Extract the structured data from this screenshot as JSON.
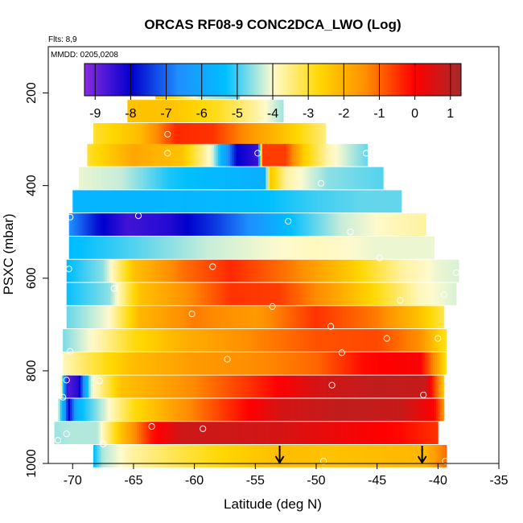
{
  "chart_data": {
    "type": "heatmap",
    "title": "ORCAS RF08-9 CONC2DCA_LWO (Log)",
    "subtitle_flights": "Flts: 8,9",
    "subtitle_dates": "MMDD: 0205,0208",
    "xlabel": "Latitude (deg N)",
    "ylabel": "PSXC (mbar)",
    "xlim": [
      -72,
      -35
    ],
    "ylim": [
      1000,
      100
    ],
    "y_reversed": true,
    "x_ticks": [
      -70,
      -65,
      -60,
      -55,
      -50,
      -45,
      -40,
      -35
    ],
    "x_tick_labels": [
      "-70",
      "-65",
      "-60",
      "-55",
      "-50",
      "-45",
      "-40",
      "-35"
    ],
    "y_ticks": [
      200,
      400,
      600,
      800,
      1000
    ],
    "y_tick_labels": [
      "200",
      "400",
      "600",
      "800",
      "1000"
    ],
    "grid": false,
    "colorbar": {
      "range": [
        -9.3,
        1.3
      ],
      "ticks": [
        -9,
        -8,
        -7,
        -6,
        -5,
        -4,
        -3,
        -2,
        -1,
        0,
        1
      ],
      "tick_labels": [
        "-9",
        "-8",
        "-7",
        "-6",
        "-5",
        "-4",
        "-3",
        "-2",
        "-1",
        "0",
        "1"
      ],
      "colors": [
        "#8a2be2",
        "#0000cd",
        "#1e90ff",
        "#00bfff",
        "#fffacd",
        "#ffd700",
        "#ff8c00",
        "#ff0000",
        "#a52a2a"
      ],
      "position": "top"
    },
    "bands": [
      {
        "p": 190,
        "lat_start": -63.2,
        "lat_end": -56.3,
        "knots": [
          [
            -63.2,
            -2.3
          ],
          [
            -61.5,
            -3.0
          ],
          [
            -59.5,
            -4.3
          ],
          [
            -57.0,
            -4.6
          ],
          [
            -56.3,
            -4.7
          ]
        ]
      },
      {
        "p": 240,
        "lat_start": -65.5,
        "lat_end": -52.7,
        "knots": [
          [
            -65.5,
            -2.3
          ],
          [
            -62.0,
            -2.3
          ],
          [
            -58.0,
            -2.9
          ],
          [
            -55.0,
            -3.7
          ],
          [
            -52.7,
            -4.5
          ]
        ]
      },
      {
        "p": 290,
        "lat_start": -68.3,
        "lat_end": -49.2,
        "knots": [
          [
            -68.3,
            -3.0
          ],
          [
            -64.5,
            -2.2
          ],
          [
            -61.5,
            -0.4
          ],
          [
            -58.5,
            -0.5
          ],
          [
            -55.5,
            -1.5
          ],
          [
            -52.0,
            -2.5
          ],
          [
            -49.2,
            -3.5
          ]
        ]
      },
      {
        "p": 335,
        "lat_start": -68.8,
        "lat_end": -45.8,
        "knots": [
          [
            -68.8,
            -3.0
          ],
          [
            -65.0,
            -1.8
          ],
          [
            -61.0,
            -2.3
          ],
          [
            -58.5,
            -4.2
          ],
          [
            -56.5,
            -8.0
          ],
          [
            -54.8,
            -8.5
          ],
          [
            -54.4,
            -0.6
          ],
          [
            -52.5,
            -0.6
          ],
          [
            -51.0,
            -2.5
          ],
          [
            -49.0,
            -3.8
          ],
          [
            -45.8,
            -4.8
          ]
        ]
      },
      {
        "p": 385,
        "lat_start": -69.5,
        "lat_end": -44.5,
        "knots": [
          [
            -69.5,
            -4.1
          ],
          [
            -66.0,
            -4.3
          ],
          [
            -62.0,
            -5.2
          ],
          [
            -57.0,
            -5.6
          ],
          [
            -54.2,
            -5.8
          ],
          [
            -53.8,
            -2.3
          ],
          [
            -52.5,
            -3.7
          ],
          [
            -49.0,
            -4.6
          ],
          [
            -44.5,
            -4.9
          ]
        ]
      },
      {
        "p": 435,
        "lat_start": -70.0,
        "lat_end": -43.0,
        "knots": [
          [
            -70.0,
            -5.6
          ],
          [
            -63.0,
            -5.6
          ],
          [
            -56.0,
            -5.5
          ],
          [
            -50.0,
            -5.0
          ],
          [
            -46.0,
            -4.8
          ],
          [
            -43.0,
            -4.8
          ]
        ]
      },
      {
        "p": 485,
        "lat_start": -70.3,
        "lat_end": -41.0,
        "knots": [
          [
            -70.3,
            -6.6
          ],
          [
            -68.0,
            -7.8
          ],
          [
            -65.5,
            -8.6
          ],
          [
            -62.0,
            -8.3
          ],
          [
            -58.5,
            -7.5
          ],
          [
            -55.0,
            -6.5
          ],
          [
            -52.0,
            -5.3
          ],
          [
            -48.0,
            -4.3
          ],
          [
            -44.0,
            -3.9
          ],
          [
            -41.0,
            -3.7
          ]
        ]
      },
      {
        "p": 535,
        "lat_start": -70.3,
        "lat_end": -40.3,
        "knots": [
          [
            -70.3,
            -5.4
          ],
          [
            -66.0,
            -5.0
          ],
          [
            -63.0,
            -4.7
          ],
          [
            -59.0,
            -4.3
          ],
          [
            -55.0,
            -4.1
          ],
          [
            -50.0,
            -3.9
          ],
          [
            -45.0,
            -4.1
          ],
          [
            -40.3,
            -4.1
          ]
        ]
      },
      {
        "p": 585,
        "lat_start": -70.5,
        "lat_end": -38.3,
        "knots": [
          [
            -70.5,
            -5.4
          ],
          [
            -67.5,
            -4.6
          ],
          [
            -65.0,
            -2.3
          ],
          [
            -61.0,
            -1.1
          ],
          [
            -57.0,
            -0.4
          ],
          [
            -52.0,
            -1.2
          ],
          [
            -47.0,
            -2.5
          ],
          [
            -43.0,
            -3.7
          ],
          [
            -40.0,
            -4.1
          ],
          [
            -38.3,
            -4.2
          ]
        ]
      },
      {
        "p": 635,
        "lat_start": -70.5,
        "lat_end": -38.5,
        "knots": [
          [
            -70.5,
            -5.3
          ],
          [
            -67.0,
            -4.6
          ],
          [
            -64.5,
            -2.3
          ],
          [
            -61.0,
            -1.5
          ],
          [
            -57.0,
            -0.5
          ],
          [
            -53.0,
            -0.6
          ],
          [
            -49.0,
            -1.6
          ],
          [
            -45.0,
            -2.8
          ],
          [
            -41.5,
            -3.9
          ],
          [
            -38.5,
            -4.2
          ]
        ]
      },
      {
        "p": 685,
        "lat_start": -70.5,
        "lat_end": -39.5,
        "knots": [
          [
            -70.5,
            -4.8
          ],
          [
            -67.0,
            -4.0
          ],
          [
            -64.5,
            -2.1
          ],
          [
            -60.0,
            -1.2
          ],
          [
            -55.0,
            -1.6
          ],
          [
            -50.0,
            -0.5
          ],
          [
            -45.0,
            -1.2
          ],
          [
            -41.5,
            -2.3
          ],
          [
            -39.5,
            -3.2
          ]
        ]
      },
      {
        "p": 735,
        "lat_start": -70.8,
        "lat_end": -39.3,
        "knots": [
          [
            -70.8,
            -4.7
          ],
          [
            -67.5,
            -3.7
          ],
          [
            -65.0,
            -2.8
          ],
          [
            -61.0,
            -2.0
          ],
          [
            -55.0,
            -1.3
          ],
          [
            -50.0,
            -0.8
          ],
          [
            -45.0,
            -0.7
          ],
          [
            -41.5,
            -1.4
          ],
          [
            -39.3,
            -3.0
          ]
        ]
      },
      {
        "p": 785,
        "lat_start": -70.8,
        "lat_end": -39.3,
        "knots": [
          [
            -70.8,
            -3.9
          ],
          [
            -68.0,
            -3.0
          ],
          [
            -65.0,
            -2.2
          ],
          [
            -60.0,
            -1.6
          ],
          [
            -54.0,
            -1.3
          ],
          [
            -50.0,
            -1.0
          ],
          [
            -46.0,
            -0.1
          ],
          [
            -41.5,
            0.1
          ],
          [
            -40.0,
            -1.8
          ],
          [
            -39.3,
            -3.0
          ]
        ]
      },
      {
        "p": 835,
        "lat_start": -71.0,
        "lat_end": -39.5,
        "knots": [
          [
            -71.0,
            -3.0
          ],
          [
            -70.4,
            -8.8
          ],
          [
            -69.5,
            -8.3
          ],
          [
            -68.5,
            -4.2
          ],
          [
            -66.0,
            -2.3
          ],
          [
            -61.0,
            -1.5
          ],
          [
            -55.0,
            -0.4
          ],
          [
            -50.0,
            0.6
          ],
          [
            -45.0,
            0.9
          ],
          [
            -41.0,
            0.8
          ],
          [
            -40.0,
            -1.2
          ],
          [
            -39.5,
            -2.5
          ]
        ]
      },
      {
        "p": 885,
        "lat_start": -71.2,
        "lat_end": -39.5,
        "knots": [
          [
            -71.2,
            -4.0
          ],
          [
            -70.3,
            -8.0
          ],
          [
            -69.5,
            -5.5
          ],
          [
            -68.0,
            -4.6
          ],
          [
            -65.0,
            -2.8
          ],
          [
            -61.0,
            -1.5
          ],
          [
            -57.0,
            -0.4
          ],
          [
            -53.0,
            0.6
          ],
          [
            -48.0,
            0.9
          ],
          [
            -43.0,
            0.8
          ],
          [
            -40.3,
            0.0
          ],
          [
            -39.5,
            -1.6
          ]
        ]
      },
      {
        "p": 935,
        "lat_start": -71.5,
        "lat_end": -40.0,
        "knots": [
          [
            -71.5,
            -4.5
          ],
          [
            -70.0,
            -4.4
          ],
          [
            -68.0,
            -4.4
          ],
          [
            -66.0,
            -2.3
          ],
          [
            -63.5,
            -0.2
          ],
          [
            -61.0,
            0.7
          ],
          [
            -57.0,
            0.7
          ],
          [
            -53.0,
            0.6
          ],
          [
            -48.0,
            0.2
          ],
          [
            -43.0,
            -0.1
          ],
          [
            -40.0,
            -0.5
          ]
        ]
      },
      {
        "p": 985,
        "lat_start": -68.3,
        "lat_end": -39.3,
        "knots": [
          [
            -68.3,
            -5.4
          ],
          [
            -67.5,
            -4.4
          ],
          [
            -65.0,
            -3.7
          ],
          [
            -61.0,
            -3.1
          ],
          [
            -57.0,
            -2.6
          ],
          [
            -53.0,
            -2.2
          ],
          [
            -49.0,
            -2.3
          ],
          [
            -45.0,
            -2.2
          ],
          [
            -41.0,
            -2.1
          ],
          [
            -39.3,
            -1.0
          ]
        ]
      }
    ],
    "sample_points": [
      [
        -62.8,
        190
      ],
      [
        -59.8,
        190
      ],
      [
        -56.3,
        190
      ],
      [
        -62.2,
        289
      ],
      [
        -62.2,
        330
      ],
      [
        -54.8,
        330
      ],
      [
        -49.6,
        395
      ],
      [
        -45.9,
        330
      ],
      [
        -64.6,
        465
      ],
      [
        -52.3,
        477
      ],
      [
        -47.2,
        500
      ],
      [
        -70.2,
        468
      ],
      [
        -44.8,
        556
      ],
      [
        -58.5,
        575
      ],
      [
        -70.3,
        580
      ],
      [
        -38.5,
        588
      ],
      [
        -66.6,
        622
      ],
      [
        -43.1,
        648
      ],
      [
        -39.5,
        636
      ],
      [
        -60.2,
        677
      ],
      [
        -53.6,
        661
      ],
      [
        -48.8,
        704
      ],
      [
        -44.2,
        730
      ],
      [
        -40.0,
        730
      ],
      [
        -70.2,
        758
      ],
      [
        -57.3,
        775
      ],
      [
        -47.9,
        761
      ],
      [
        -70.5,
        820
      ],
      [
        -67.8,
        822
      ],
      [
        -48.7,
        831
      ],
      [
        -41.2,
        852
      ],
      [
        -70.8,
        857
      ],
      [
        -70.5,
        936
      ],
      [
        -63.5,
        920
      ],
      [
        -59.3,
        925
      ],
      [
        -71.2,
        950
      ],
      [
        -67.5,
        958
      ],
      [
        -49.4,
        995
      ],
      [
        -39.4,
        995
      ]
    ],
    "markers": [
      {
        "type": "arrow",
        "lat": -53.0
      },
      {
        "type": "arrow",
        "lat": -41.3
      }
    ]
  }
}
